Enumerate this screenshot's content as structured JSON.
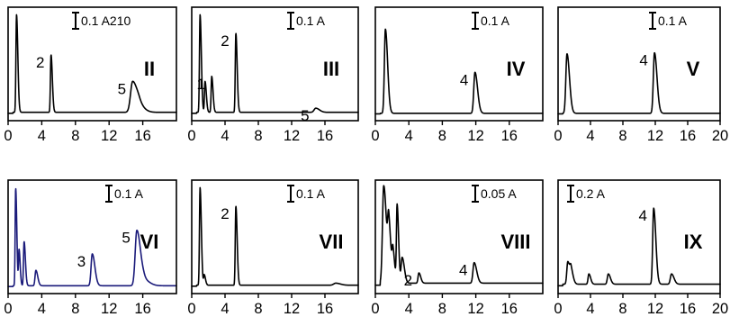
{
  "colors": {
    "black": "#000000",
    "blue": "#1a1a7a"
  },
  "chart_data": [
    {
      "type": "line",
      "panel": "II",
      "scale": "0.1 A210",
      "xlim": [
        0,
        20
      ],
      "xticks": [
        "0",
        "4",
        "8",
        "12",
        "16"
      ],
      "peaks": [
        {
          "x": 1.0,
          "h": 0.95,
          "w": 0.07
        },
        {
          "x": 5.1,
          "h": 0.56,
          "w": 0.07,
          "label": "2"
        },
        {
          "x": 14.8,
          "h": 0.3,
          "w": 0.25,
          "label": "5"
        },
        {
          "x": 15.6,
          "h": 0.05,
          "w": 0.3
        }
      ],
      "baseline": 0.02,
      "color": "#000000"
    },
    {
      "type": "line",
      "panel": "III",
      "scale": "0.1 A",
      "xlim": [
        0,
        20
      ],
      "xticks": [
        "0",
        "4",
        "8",
        "12",
        "16"
      ],
      "peaks": [
        {
          "x": 1.0,
          "h": 0.95,
          "w": 0.07
        },
        {
          "x": 1.6,
          "h": 0.3,
          "w": 0.07
        },
        {
          "x": 2.4,
          "h": 0.35,
          "w": 0.07,
          "label": "1"
        },
        {
          "x": 5.3,
          "h": 0.77,
          "w": 0.07,
          "label": "2"
        },
        {
          "x": 14.9,
          "h": 0.04,
          "w": 0.2,
          "label": "5"
        }
      ],
      "baseline": 0.02,
      "color": "#000000"
    },
    {
      "type": "line",
      "panel": "IV",
      "scale": "0.1 A",
      "xlim": [
        0,
        20
      ],
      "xticks": [
        "0",
        "4",
        "8",
        "12",
        "16"
      ],
      "peaks": [
        {
          "x": 1.2,
          "h": 0.82,
          "w": 0.12
        },
        {
          "x": 11.9,
          "h": 0.4,
          "w": 0.14,
          "label": "4"
        }
      ],
      "baseline": 0.01,
      "color": "#000000"
    },
    {
      "type": "line",
      "panel": "V",
      "scale": "0.1 A",
      "xlim": [
        0,
        20
      ],
      "xticks": [
        "0",
        "4",
        "8",
        "12",
        "16",
        "20"
      ],
      "peaks": [
        {
          "x": 1.1,
          "h": 0.58,
          "w": 0.14
        },
        {
          "x": 11.9,
          "h": 0.59,
          "w": 0.14,
          "label": "4"
        }
      ],
      "baseline": 0.01,
      "color": "#000000"
    },
    {
      "type": "line",
      "panel": "VI",
      "scale": "0.1 A",
      "xlim": [
        0,
        20
      ],
      "xticks": [
        "0",
        "4",
        "8",
        "12",
        "16"
      ],
      "peaks": [
        {
          "x": 0.9,
          "h": 0.95,
          "w": 0.06
        },
        {
          "x": 1.3,
          "h": 0.35,
          "w": 0.06
        },
        {
          "x": 1.9,
          "h": 0.43,
          "w": 0.07
        },
        {
          "x": 3.3,
          "h": 0.15,
          "w": 0.1
        },
        {
          "x": 10.0,
          "h": 0.31,
          "w": 0.14,
          "label": "3"
        },
        {
          "x": 15.3,
          "h": 0.54,
          "w": 0.2,
          "label": "5"
        },
        {
          "x": 16.2,
          "h": 0.05,
          "w": 0.3
        }
      ],
      "baseline": 0.015,
      "color": "#1a1a7a"
    },
    {
      "type": "line",
      "panel": "VII",
      "scale": "0.1 A",
      "xlim": [
        0,
        20
      ],
      "xticks": [
        "0",
        "4",
        "8",
        "12",
        "16"
      ],
      "peaks": [
        {
          "x": 1.0,
          "h": 0.95,
          "w": 0.07
        },
        {
          "x": 1.5,
          "h": 0.1,
          "w": 0.07
        },
        {
          "x": 5.3,
          "h": 0.77,
          "w": 0.07,
          "label": "2"
        },
        {
          "x": 17.3,
          "h": 0.02,
          "w": 0.25
        }
      ],
      "baseline": 0.02,
      "color": "#000000"
    },
    {
      "type": "line",
      "panel": "VIII",
      "scale": "0.05 A",
      "xlim": [
        0,
        20
      ],
      "xticks": [
        "0",
        "4",
        "8",
        "12",
        "16"
      ],
      "peaks": [
        {
          "x": 1.0,
          "h": 0.95,
          "w": 0.15
        },
        {
          "x": 1.6,
          "h": 0.52,
          "w": 0.12
        },
        {
          "x": 2.1,
          "h": 0.28,
          "w": 0.1
        },
        {
          "x": 2.6,
          "h": 0.75,
          "w": 0.08
        },
        {
          "x": 3.2,
          "h": 0.25,
          "w": 0.12
        },
        {
          "x": 5.2,
          "h": 0.1,
          "w": 0.1,
          "label": "2"
        },
        {
          "x": 11.8,
          "h": 0.2,
          "w": 0.14,
          "label": "4"
        }
      ],
      "baseline": 0.04,
      "color": "#000000"
    },
    {
      "type": "line",
      "panel": "IX",
      "scale": "0.2 A",
      "xlim": [
        0,
        20
      ],
      "xticks": [
        "0",
        "4",
        "8",
        "12",
        "16",
        "20"
      ],
      "peaks": [
        {
          "x": 1.2,
          "h": 0.22,
          "w": 0.12
        },
        {
          "x": 1.6,
          "h": 0.12,
          "w": 0.12
        },
        {
          "x": 3.8,
          "h": 0.1,
          "w": 0.1
        },
        {
          "x": 6.2,
          "h": 0.1,
          "w": 0.12
        },
        {
          "x": 11.8,
          "h": 0.74,
          "w": 0.12,
          "label": "4"
        },
        {
          "x": 14.0,
          "h": 0.1,
          "w": 0.14
        }
      ],
      "baseline": 0.03,
      "color": "#000000"
    }
  ]
}
